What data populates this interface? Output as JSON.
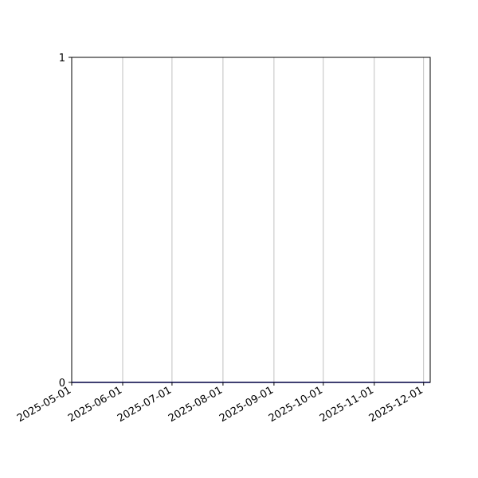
{
  "chart_data": {
    "type": "line",
    "title": "",
    "xlabel": "",
    "ylabel": "",
    "x_axis_type": "date",
    "xlim": [
      "2025-05-01",
      "2025-12-05"
    ],
    "ylim": [
      0,
      1
    ],
    "x_ticks": [
      "2025-05-01",
      "2025-06-01",
      "2025-07-01",
      "2025-08-01",
      "2025-09-01",
      "2025-10-01",
      "2025-11-01",
      "2025-12-01"
    ],
    "y_ticks": [
      0,
      1
    ],
    "grid": {
      "x": true,
      "y": false
    },
    "series": [
      {
        "color": "#0000cc",
        "x": [
          "2025-05-01",
          "2025-12-05"
        ],
        "y": [
          0,
          0
        ]
      }
    ],
    "colors": {
      "grid": "#b0b0b0",
      "axes": "#000000"
    }
  }
}
